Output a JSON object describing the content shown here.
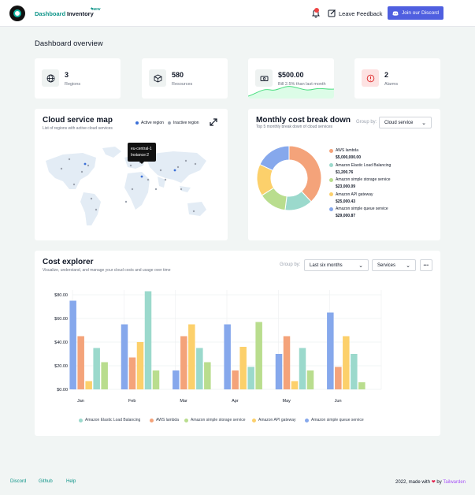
{
  "nav": {
    "dashboard": "Dashboard",
    "inventory": "Inventory",
    "new_badge": "NEW",
    "feedback": "Leave Feedback",
    "discord": "Join our Discord"
  },
  "page": {
    "title": "Dashboard overview"
  },
  "stats": [
    {
      "value": "3",
      "label": "Regions",
      "icon": "globe-icon"
    },
    {
      "value": "580",
      "label": "Resources",
      "icon": "box-icon"
    },
    {
      "value": "$500.00",
      "label": "Bill 2.5% than last month",
      "icon": "bill-icon"
    },
    {
      "value": "2",
      "label": "Alarms",
      "icon": "alert-icon"
    }
  ],
  "map": {
    "title": "Cloud service map",
    "subtitle": "List of regions with active cloud services",
    "legend_active": "Active region",
    "legend_inactive": "Inactive region",
    "tooltip_line1": "eu-central-1",
    "tooltip_line2": "Instance:2"
  },
  "breakdown": {
    "title": "Monthly cost break down",
    "subtitle": "Top 5 monthly break down of cloud services",
    "group_label": "Group by:",
    "group_value": "Cloud service",
    "items": [
      {
        "name": "AWS lambda",
        "value": "$5,000,000.00",
        "color": "#f4a37a",
        "share": 0.38
      },
      {
        "name": "Amazon Elastic Load Balancing",
        "value": "$1,200.76",
        "color": "#9bd9cc",
        "share": 0.14
      },
      {
        "name": "Amazon simple storage service",
        "value": "$23,000.09",
        "color": "#b9dd8e",
        "share": 0.14
      },
      {
        "name": "Amazon API gateway",
        "value": "$25,000.43",
        "color": "#fcd06b",
        "share": 0.16
      },
      {
        "name": "Amazon simple queue service",
        "value": "$29,000.87",
        "color": "#86a8ec",
        "share": 0.18
      }
    ]
  },
  "explorer": {
    "title": "Cost explorer",
    "subtitle": "Visualize, understand, and manage your cloud costs and usage over time",
    "group_label": "Group by:",
    "period_value": "Last six months",
    "group_value": "Services",
    "more": "•••"
  },
  "chart_data": {
    "type": "bar",
    "categories": [
      "Jan",
      "Feb",
      "Mar",
      "Apr",
      "May",
      "Jun"
    ],
    "ylim": [
      0,
      80
    ],
    "yticks": [
      "$0.00",
      "$20.00",
      "$40.00",
      "$60.00",
      "$80.00"
    ],
    "series": [
      {
        "name": "Amazon simple queue service",
        "color": "#86a8ec",
        "values": [
          75,
          55,
          16,
          55,
          30,
          65
        ]
      },
      {
        "name": "AWS lambda",
        "color": "#f4a37a",
        "values": [
          45,
          27,
          45,
          16,
          45,
          19
        ]
      },
      {
        "name": "Amazon API gateway",
        "color": "#fcd06b",
        "values": [
          7,
          40,
          55,
          36,
          7,
          45
        ]
      },
      {
        "name": "Amazon Elastic Load Balancing",
        "color": "#9bd9cc",
        "values": [
          35,
          83,
          35,
          19,
          35,
          30
        ]
      },
      {
        "name": "Amazon simple storage service",
        "color": "#b9dd8e",
        "values": [
          23,
          16,
          23,
          57,
          16,
          6
        ]
      }
    ],
    "legend": [
      {
        "name": "Amazon Elastic Load Balancing",
        "color": "#9bd9cc"
      },
      {
        "name": "AWS lambda",
        "color": "#f4a37a"
      },
      {
        "name": "Amazon simple storage service",
        "color": "#b9dd8e"
      },
      {
        "name": "Amazon API gateway",
        "color": "#fcd06b"
      },
      {
        "name": "Amazon simple queue service",
        "color": "#86a8ec"
      }
    ]
  },
  "footer": {
    "discord": "Discord",
    "github": "Github",
    "help": "Help",
    "made_with": "2022, made with",
    "by": "by",
    "brand": "Tailwarden"
  }
}
